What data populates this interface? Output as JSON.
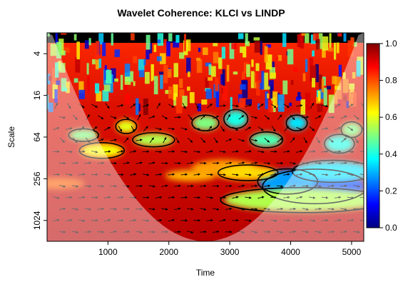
{
  "chart_data": {
    "type": "heatmap",
    "title": "Wavelet Coherence: KLCI vs LINDP",
    "xlabel": "Time",
    "ylabel": "Scale",
    "x_ticks": [
      1000,
      2000,
      3000,
      4000,
      5000
    ],
    "x_tick_labels": [
      "1000",
      "2000",
      "3000",
      "4000",
      "5000"
    ],
    "xlim": [
      1,
      5200
    ],
    "y_ticks": [
      4,
      16,
      64,
      256,
      1024
    ],
    "y_tick_labels": [
      "4",
      "16",
      "64",
      "256",
      "1024"
    ],
    "y_scale": "log2",
    "y_reversed": true,
    "ylim": [
      2,
      2048
    ],
    "colorbar": {
      "ticks": [
        0.0,
        0.2,
        0.4,
        0.6,
        0.8,
        1.0
      ],
      "tick_labels": [
        "0.0",
        "0.2",
        "0.4",
        "0.6",
        "0.8",
        "1.0"
      ],
      "range": [
        0,
        1
      ],
      "colors": [
        "#00007f",
        "#0000ff",
        "#007fff",
        "#00ffff",
        "#7fff7f",
        "#ffff00",
        "#ff7f00",
        "#ff0000",
        "#7f0000"
      ]
    },
    "grid": false,
    "legend": "colorbar-right",
    "features": {
      "dominant_coherence": "high (0.8–1.0) across most of the time–scale plane",
      "low_coherence_region": "around time 3900–5100 at scales 200–600",
      "cone_of_influence": "shaded outside a parabola reaching its deepest scale near time 2600",
      "phase_arrows": "mostly pointing right (in-phase) at large scales"
    }
  }
}
